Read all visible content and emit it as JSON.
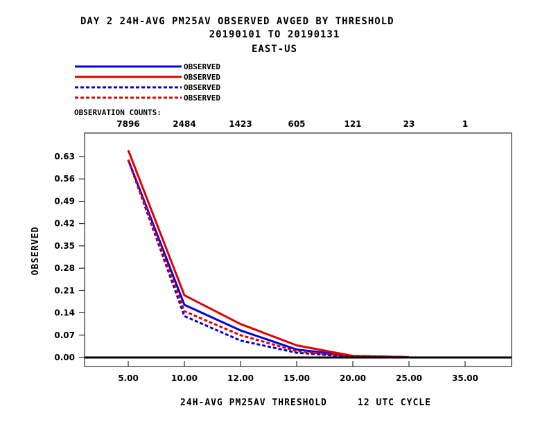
{
  "chart_data": {
    "type": "line",
    "title_lines": [
      "DAY 2   24H-AVG PM25AV OBSERVED   AVGED BY THRESHOLD",
      "20190101 TO 20190131",
      "EAST-US"
    ],
    "xlabel": "24H-AVG PM25AV THRESHOLD     12 UTC CYCLE",
    "ylabel": "OBSERVED",
    "obs_counts_label": "OBSERVATION COUNTS:",
    "obs_counts": [
      "7896",
      "2484",
      "1423",
      "605",
      "121",
      "23",
      "1"
    ],
    "x_ticks": [
      "5.00",
      "10.00",
      "12.00",
      "15.00",
      "20.00",
      "25.00",
      "35.00"
    ],
    "y_ticks": [
      "0.00",
      "0.07",
      "0.14",
      "0.21",
      "0.28",
      "0.35",
      "0.42",
      "0.49",
      "0.56",
      "0.63"
    ],
    "ylim": [
      -0.02,
      0.72
    ],
    "xlim": [
      0,
      6.8
    ],
    "series": [
      {
        "name": "OBSERVED",
        "color": "#0000dd",
        "dash": "solid",
        "values": [
          0.62,
          0.165,
          0.085,
          0.025,
          0.005,
          0.001
        ]
      },
      {
        "name": "OBSERVED",
        "color": "#dd0000",
        "dash": "solid",
        "values": [
          0.65,
          0.195,
          0.105,
          0.038,
          0.005,
          0.001
        ]
      },
      {
        "name": "OBSERVED",
        "color": "#0000dd",
        "dash": "dashed",
        "values": [
          0.62,
          0.13,
          0.053,
          0.015,
          0.002,
          0.0
        ]
      },
      {
        "name": "OBSERVED",
        "color": "#dd0000",
        "dash": "dashed",
        "values": [
          0.62,
          0.145,
          0.07,
          0.02,
          0.003,
          0.0
        ]
      }
    ]
  }
}
